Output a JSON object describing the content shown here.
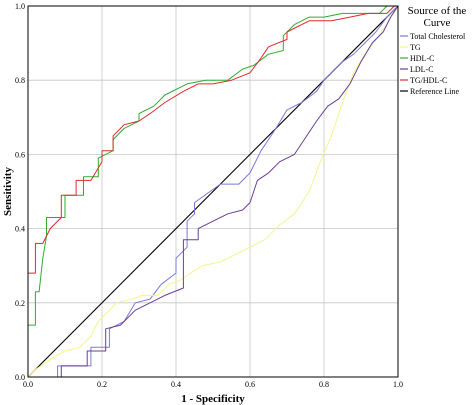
{
  "chart_data": {
    "type": "line",
    "xlabel": "1 - Specificity",
    "ylabel": "Sensitivity",
    "xlim": [
      0,
      1
    ],
    "ylim": [
      0,
      1
    ],
    "grid": true,
    "xticks": [
      "0.0",
      "0.2",
      "0.4",
      "0.6",
      "0.8",
      "1.0"
    ],
    "yticks": [
      "0.0",
      "0.2",
      "0.4",
      "0.6",
      "0.8",
      "1.0"
    ],
    "legend": {
      "title_line1": "Source of the",
      "title_line2": "Curve",
      "placement": "right"
    },
    "series": [
      {
        "name": "Total Cholesterol",
        "color": "#7a7ad2",
        "points": [
          [
            0,
            0
          ],
          [
            0.08,
            0
          ],
          [
            0.08,
            0.03
          ],
          [
            0.17,
            0.03
          ],
          [
            0.17,
            0.08
          ],
          [
            0.22,
            0.08
          ],
          [
            0.22,
            0.13
          ],
          [
            0.26,
            0.15
          ],
          [
            0.29,
            0.2
          ],
          [
            0.33,
            0.21
          ],
          [
            0.36,
            0.25
          ],
          [
            0.4,
            0.28
          ],
          [
            0.4,
            0.32
          ],
          [
            0.43,
            0.35
          ],
          [
            0.43,
            0.42
          ],
          [
            0.45,
            0.44
          ],
          [
            0.45,
            0.47
          ],
          [
            0.52,
            0.52
          ],
          [
            0.57,
            0.52
          ],
          [
            0.6,
            0.55
          ],
          [
            0.63,
            0.61
          ],
          [
            0.67,
            0.67
          ],
          [
            0.7,
            0.72
          ],
          [
            0.74,
            0.74
          ],
          [
            0.78,
            0.77
          ],
          [
            0.8,
            0.8
          ],
          [
            0.82,
            0.82
          ],
          [
            0.85,
            0.85
          ],
          [
            0.88,
            0.87
          ],
          [
            0.91,
            0.9
          ],
          [
            0.94,
            0.93
          ],
          [
            0.97,
            0.97
          ],
          [
            1,
            1
          ]
        ]
      },
      {
        "name": "TG",
        "color": "#f5f58a",
        "points": [
          [
            0,
            0
          ],
          [
            0.02,
            0.02
          ],
          [
            0.05,
            0.04
          ],
          [
            0.08,
            0.06
          ],
          [
            0.1,
            0.07
          ],
          [
            0.14,
            0.08
          ],
          [
            0.17,
            0.11
          ],
          [
            0.19,
            0.15
          ],
          [
            0.21,
            0.17
          ],
          [
            0.24,
            0.2
          ],
          [
            0.28,
            0.21
          ],
          [
            0.31,
            0.22
          ],
          [
            0.35,
            0.22
          ],
          [
            0.38,
            0.25
          ],
          [
            0.41,
            0.26
          ],
          [
            0.44,
            0.28
          ],
          [
            0.47,
            0.3
          ],
          [
            0.52,
            0.31
          ],
          [
            0.56,
            0.33
          ],
          [
            0.6,
            0.35
          ],
          [
            0.64,
            0.37
          ],
          [
            0.68,
            0.41
          ],
          [
            0.72,
            0.44
          ],
          [
            0.76,
            0.5
          ],
          [
            0.79,
            0.58
          ],
          [
            0.82,
            0.65
          ],
          [
            0.85,
            0.74
          ],
          [
            0.88,
            0.82
          ],
          [
            0.91,
            0.87
          ],
          [
            0.94,
            0.91
          ],
          [
            0.97,
            0.95
          ],
          [
            1,
            1
          ]
        ]
      },
      {
        "name": "HDL-C",
        "color": "#33aa33",
        "points": [
          [
            0,
            0.14
          ],
          [
            0.02,
            0.14
          ],
          [
            0.02,
            0.23
          ],
          [
            0.03,
            0.23
          ],
          [
            0.04,
            0.32
          ],
          [
            0.05,
            0.38
          ],
          [
            0.05,
            0.43
          ],
          [
            0.1,
            0.43
          ],
          [
            0.1,
            0.49
          ],
          [
            0.15,
            0.49
          ],
          [
            0.15,
            0.54
          ],
          [
            0.19,
            0.54
          ],
          [
            0.19,
            0.59
          ],
          [
            0.23,
            0.61
          ],
          [
            0.23,
            0.64
          ],
          [
            0.26,
            0.67
          ],
          [
            0.3,
            0.69
          ],
          [
            0.3,
            0.71
          ],
          [
            0.34,
            0.73
          ],
          [
            0.37,
            0.76
          ],
          [
            0.43,
            0.79
          ],
          [
            0.48,
            0.8
          ],
          [
            0.54,
            0.8
          ],
          [
            0.58,
            0.83
          ],
          [
            0.61,
            0.84
          ],
          [
            0.65,
            0.87
          ],
          [
            0.69,
            0.88
          ],
          [
            0.69,
            0.92
          ],
          [
            0.72,
            0.95
          ],
          [
            0.76,
            0.97
          ],
          [
            0.8,
            0.97
          ],
          [
            0.85,
            0.98
          ],
          [
            0.9,
            0.98
          ],
          [
            0.95,
            0.98
          ],
          [
            0.97,
            1
          ],
          [
            1,
            1
          ]
        ]
      },
      {
        "name": "LDL-C",
        "color": "#6a3d9a",
        "points": [
          [
            0,
            0
          ],
          [
            0.09,
            0
          ],
          [
            0.09,
            0.03
          ],
          [
            0.16,
            0.03
          ],
          [
            0.16,
            0.07
          ],
          [
            0.21,
            0.07
          ],
          [
            0.21,
            0.13
          ],
          [
            0.25,
            0.14
          ],
          [
            0.29,
            0.18
          ],
          [
            0.33,
            0.2
          ],
          [
            0.37,
            0.22
          ],
          [
            0.42,
            0.24
          ],
          [
            0.42,
            0.37
          ],
          [
            0.46,
            0.37
          ],
          [
            0.46,
            0.4
          ],
          [
            0.5,
            0.42
          ],
          [
            0.54,
            0.44
          ],
          [
            0.58,
            0.45
          ],
          [
            0.6,
            0.47
          ],
          [
            0.62,
            0.53
          ],
          [
            0.65,
            0.55
          ],
          [
            0.68,
            0.58
          ],
          [
            0.72,
            0.6
          ],
          [
            0.76,
            0.66
          ],
          [
            0.78,
            0.69
          ],
          [
            0.81,
            0.73
          ],
          [
            0.84,
            0.75
          ],
          [
            0.87,
            0.79
          ],
          [
            0.9,
            0.85
          ],
          [
            0.93,
            0.9
          ],
          [
            0.96,
            0.93
          ],
          [
            0.98,
            0.97
          ],
          [
            1,
            1
          ]
        ]
      },
      {
        "name": "TG/HDL-C",
        "color": "#dd2c2c",
        "points": [
          [
            0,
            0.28
          ],
          [
            0.02,
            0.28
          ],
          [
            0.02,
            0.36
          ],
          [
            0.04,
            0.36
          ],
          [
            0.06,
            0.4
          ],
          [
            0.09,
            0.43
          ],
          [
            0.09,
            0.49
          ],
          [
            0.13,
            0.49
          ],
          [
            0.13,
            0.53
          ],
          [
            0.17,
            0.53
          ],
          [
            0.2,
            0.58
          ],
          [
            0.2,
            0.61
          ],
          [
            0.23,
            0.61
          ],
          [
            0.23,
            0.65
          ],
          [
            0.26,
            0.68
          ],
          [
            0.3,
            0.69
          ],
          [
            0.33,
            0.71
          ],
          [
            0.37,
            0.74
          ],
          [
            0.42,
            0.77
          ],
          [
            0.46,
            0.79
          ],
          [
            0.5,
            0.79
          ],
          [
            0.55,
            0.8
          ],
          [
            0.6,
            0.82
          ],
          [
            0.63,
            0.86
          ],
          [
            0.65,
            0.89
          ],
          [
            0.7,
            0.91
          ],
          [
            0.7,
            0.93
          ],
          [
            0.76,
            0.96
          ],
          [
            0.82,
            0.96
          ],
          [
            0.87,
            0.97
          ],
          [
            0.92,
            0.98
          ],
          [
            0.97,
            0.98
          ],
          [
            0.99,
            1
          ],
          [
            1,
            1
          ]
        ]
      },
      {
        "name": "Reference Line",
        "color": "#000000",
        "points": [
          [
            0,
            0
          ],
          [
            1,
            1
          ]
        ]
      }
    ]
  }
}
